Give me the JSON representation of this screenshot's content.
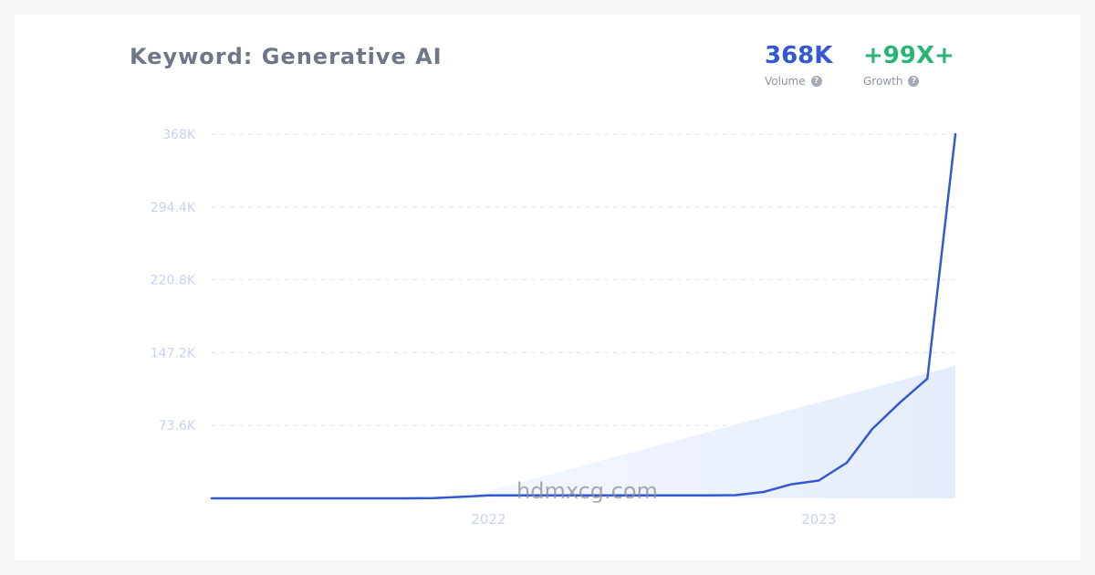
{
  "header": {
    "title": "Keyword: Generative AI"
  },
  "stats": {
    "volume": {
      "value": "368K",
      "label": "Volume"
    },
    "growth": {
      "value": "+99X+",
      "label": "Growth"
    }
  },
  "help_icon_glyph": "?",
  "watermark": "hdmxcg.com",
  "colors": {
    "volume": "#3557d2",
    "growth": "#29b574",
    "line": "#3359d1",
    "trend_fill": "#e7eefc",
    "gridline": "#dde3ee"
  },
  "chart_data": {
    "type": "line",
    "title": "Keyword: Generative AI",
    "xlabel": "",
    "ylabel": "",
    "y_ticks": [
      0,
      73600,
      147200,
      220800,
      294400,
      368000
    ],
    "y_tick_labels": [
      "",
      "73.6K",
      "147.2K",
      "220.8K",
      "294.4K",
      "368K"
    ],
    "x_tick_labels": [
      "2022",
      "2023"
    ],
    "x_tick_dates": [
      "2022-01-01",
      "2023-01-01"
    ],
    "xlim": [
      "2021-03-01",
      "2023-06-01"
    ],
    "ylim": [
      0,
      368000
    ],
    "grid": true,
    "legend": "none",
    "series": [
      {
        "x": [
          "2021-03-01",
          "2021-04-01",
          "2021-05-01",
          "2021-06-01",
          "2021-07-01",
          "2021-08-01",
          "2021-09-01",
          "2021-10-01",
          "2021-11-01",
          "2021-12-01",
          "2022-01-01",
          "2022-02-01",
          "2022-03-01",
          "2022-04-01",
          "2022-05-01",
          "2022-06-01",
          "2022-07-01",
          "2022-08-01",
          "2022-09-01",
          "2022-10-01",
          "2022-11-01",
          "2022-12-01",
          "2023-01-01",
          "2023-02-01",
          "2023-03-01",
          "2023-04-01",
          "2023-05-01",
          "2023-06-01"
        ],
        "values": [
          0,
          0,
          0,
          0,
          0,
          0,
          0,
          0,
          200,
          1500,
          3000,
          3000,
          3000,
          3000,
          3000,
          3000,
          3000,
          3000,
          3000,
          3200,
          6500,
          14000,
          18000,
          36000,
          70000,
          97000,
          121000,
          368000
        ]
      }
    ],
    "trend": {
      "x": [
        "2021-12-01",
        "2023-06-01"
      ],
      "values": [
        0,
        134000
      ]
    }
  }
}
